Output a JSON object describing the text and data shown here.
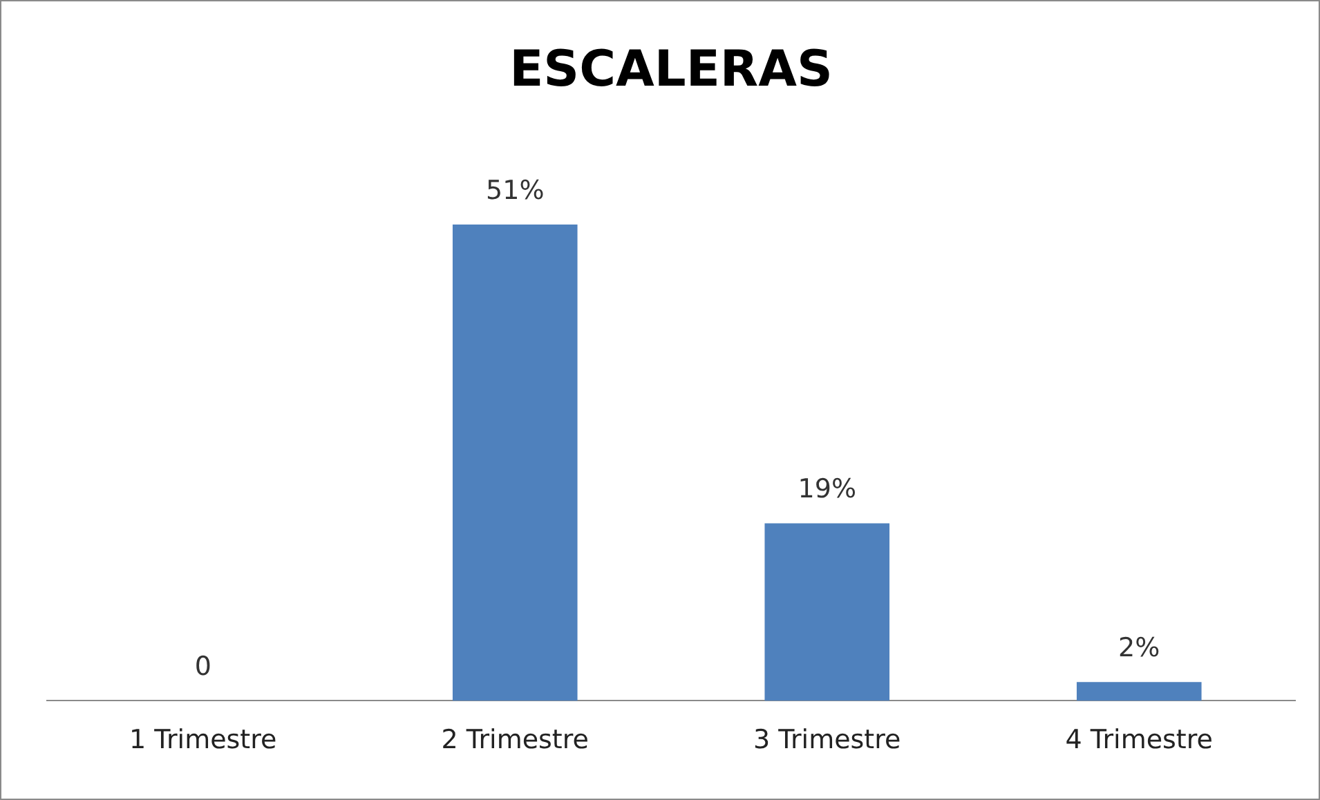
{
  "chart_data": {
    "type": "bar",
    "title": "ESCALERAS",
    "categories": [
      "1 Trimestre",
      "2 Trimestre",
      "3 Trimestre",
      "4 Trimestre"
    ],
    "values": [
      0,
      51,
      19,
      2
    ],
    "value_labels": [
      "0",
      "51%",
      "19%",
      "2%"
    ],
    "color": "#4f81bd",
    "grid": false,
    "legend": false
  }
}
